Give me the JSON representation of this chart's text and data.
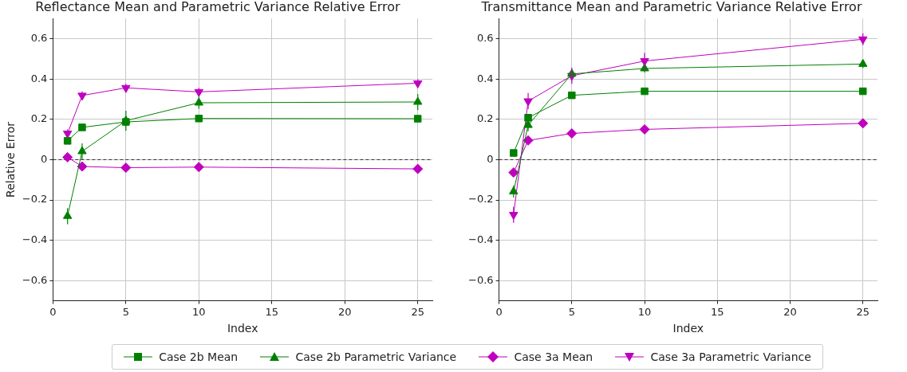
{
  "chart_data": [
    {
      "type": "line",
      "title": "Reflectance Mean and Parametric Variance Relative Error",
      "xlabel": "Index",
      "ylabel": "Relative Error",
      "x": [
        1,
        2,
        5,
        10,
        25
      ],
      "xlim": [
        0,
        26
      ],
      "xticks": [
        0,
        5,
        10,
        15,
        20,
        25
      ],
      "ylim": [
        -0.7,
        0.7
      ],
      "yticks": [
        {
          "value": -0.6,
          "label": "−0.6"
        },
        {
          "value": -0.4,
          "label": "−0.4"
        },
        {
          "value": -0.2,
          "label": "−0.2"
        },
        0.0,
        0.2,
        0.4,
        0.6
      ],
      "grid": true,
      "legend": "bottom",
      "ref_lines": [
        {
          "axis": "y",
          "value": 0,
          "color": "#000000",
          "line_style": "dashed"
        }
      ],
      "series": [
        {
          "name": "Case 2b Mean",
          "color": "#008000",
          "marker": "square",
          "values": [
            0.093,
            0.16,
            0.187,
            0.204,
            0.203
          ],
          "errors": [
            0.01,
            0.01,
            0.02,
            0.01,
            0.01
          ]
        },
        {
          "name": "Case 2b Parametric Variance",
          "color": "#008000",
          "marker": "triangle",
          "values": [
            -0.28,
            0.041,
            0.193,
            0.282,
            0.286
          ],
          "errors": [
            0.04,
            0.04,
            0.05,
            0.03,
            0.04
          ]
        },
        {
          "name": "Case 3a Mean",
          "color": "#bf00bf",
          "marker": "diamond",
          "values": [
            0.012,
            -0.034,
            -0.04,
            -0.037,
            -0.046
          ],
          "errors": [
            0.01,
            0.01,
            0.01,
            0.01,
            0.01
          ]
        },
        {
          "name": "Case 3a Parametric Variance",
          "color": "#bf00bf",
          "marker": "triangle_down",
          "values": [
            0.13,
            0.318,
            0.356,
            0.336,
            0.379
          ],
          "errors": [
            0.02,
            0.02,
            0.02,
            0.02,
            0.02
          ]
        }
      ]
    },
    {
      "type": "line",
      "title": "Transmittance Mean and Parametric Variance Relative Error",
      "xlabel": "Index",
      "x": [
        1,
        2,
        5,
        10,
        25
      ],
      "xlim": [
        0,
        26
      ],
      "xticks": [
        0,
        5,
        10,
        15,
        20,
        25
      ],
      "ylim": [
        -0.7,
        0.7
      ],
      "yticks": [
        {
          "value": -0.6,
          "label": "−0.6"
        },
        {
          "value": -0.4,
          "label": "−0.4"
        },
        {
          "value": -0.2,
          "label": "−0.2"
        },
        0.0,
        0.2,
        0.4,
        0.6
      ],
      "grid": true,
      "ref_lines": [
        {
          "axis": "y",
          "value": 0,
          "color": "#000000",
          "line_style": "dashed"
        }
      ],
      "series": [
        {
          "color": "#008000",
          "marker": "square",
          "values": [
            0.033,
            0.208,
            0.319,
            0.339,
            0.339
          ],
          "errors": [
            0.01,
            0.01,
            0.01,
            0.01,
            0.01
          ]
        },
        {
          "color": "#008000",
          "marker": "triangle",
          "values": [
            -0.158,
            0.171,
            0.425,
            0.452,
            0.474
          ],
          "errors": [
            0.03,
            0.03,
            0.02,
            0.02,
            0.02
          ]
        },
        {
          "color": "#bf00bf",
          "marker": "diamond",
          "values": [
            -0.064,
            0.095,
            0.13,
            0.15,
            0.18
          ],
          "errors": [
            0.01,
            0.01,
            0.01,
            0.01,
            0.01
          ]
        },
        {
          "color": "#bf00bf",
          "marker": "triangle_down",
          "values": [
            -0.273,
            0.29,
            0.416,
            0.489,
            0.597
          ],
          "errors": [
            0.04,
            0.04,
            0.04,
            0.04,
            0.03
          ]
        }
      ]
    }
  ]
}
